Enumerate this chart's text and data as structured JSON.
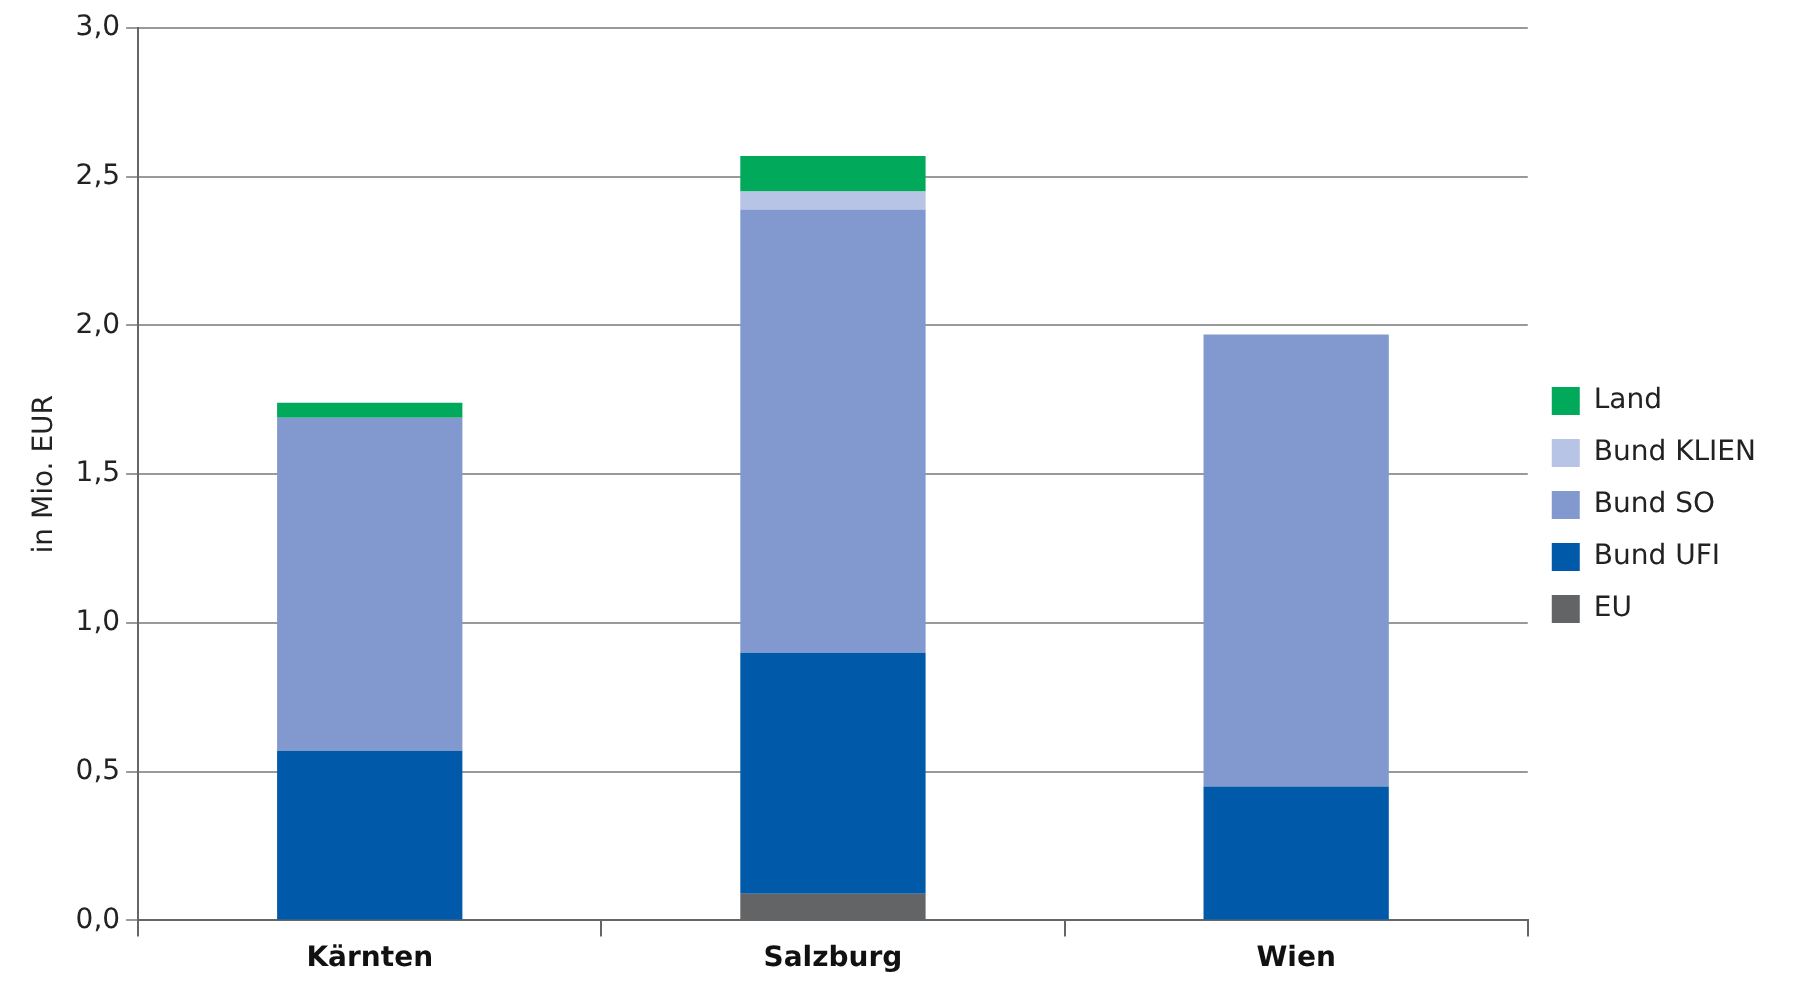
{
  "chart_data": {
    "type": "bar",
    "stacked": true,
    "ylabel": "in Mio. EUR",
    "categories": [
      "Kärnten",
      "Salzburg",
      "Wien"
    ],
    "series": [
      {
        "name": "EU",
        "color": "#636466",
        "values": [
          null,
          0.09,
          null
        ]
      },
      {
        "name": "Bund UFI",
        "color": "#005aa9",
        "values": [
          0.57,
          0.81,
          0.45
        ]
      },
      {
        "name": "Bund SO",
        "color": "#8299cf",
        "values": [
          1.12,
          1.49,
          1.52
        ]
      },
      {
        "name": "Bund KLIEN",
        "color": "#b8c4e6",
        "values": [
          null,
          0.06,
          null
        ]
      },
      {
        "name": "Land",
        "color": "#00aa5a",
        "values": [
          0.05,
          0.12,
          null
        ]
      }
    ],
    "ylim": [
      0,
      3
    ],
    "yticks": [
      {
        "value": 0,
        "label": "0,0"
      },
      {
        "value": 0.5,
        "label": "0,5"
      },
      {
        "value": 1,
        "label": "1,0"
      },
      {
        "value": 1.5,
        "label": "1,5"
      },
      {
        "value": 2,
        "label": "2,0"
      },
      {
        "value": 2.5,
        "label": "2,5"
      },
      {
        "value": 3,
        "label": "3,0"
      }
    ],
    "grid": "y",
    "legend": "right"
  }
}
